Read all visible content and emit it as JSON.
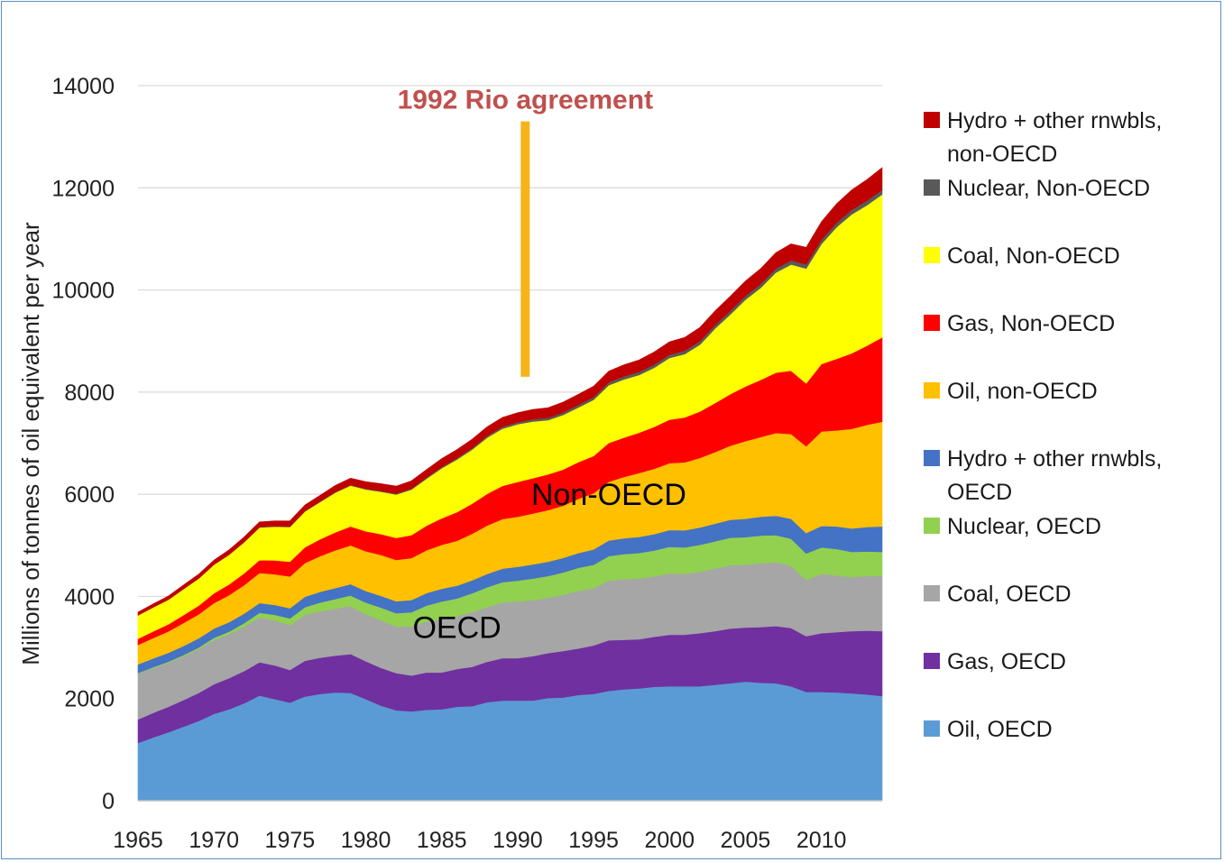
{
  "chart_data": {
    "type": "area",
    "stacked": true,
    "title": "",
    "ylabel": "Millions of tonnes of oil equivalent per year",
    "xlabel": "",
    "ylim": [
      0,
      14000
    ],
    "yticks": [
      0,
      2000,
      4000,
      6000,
      8000,
      10000,
      12000,
      14000
    ],
    "xticks": [
      1965,
      1970,
      1975,
      1980,
      1985,
      1990,
      1995,
      2000,
      2005,
      2010
    ],
    "grid": "horizontal",
    "legend_position": "right",
    "x": [
      1965,
      1966,
      1967,
      1968,
      1969,
      1970,
      1971,
      1972,
      1973,
      1974,
      1975,
      1976,
      1977,
      1978,
      1979,
      1980,
      1981,
      1982,
      1983,
      1984,
      1985,
      1986,
      1987,
      1988,
      1989,
      1990,
      1991,
      1992,
      1993,
      1994,
      1995,
      1996,
      1997,
      1998,
      1999,
      2000,
      2001,
      2002,
      2003,
      2004,
      2005,
      2006,
      2007,
      2008,
      2009,
      2010,
      2011,
      2012,
      2013,
      2014
    ],
    "series": [
      {
        "name": "Oil, OECD",
        "color": "#5b9bd5",
        "values": [
          1130,
          1240,
          1340,
          1450,
          1560,
          1700,
          1790,
          1910,
          2060,
          1990,
          1920,
          2040,
          2090,
          2120,
          2110,
          1990,
          1860,
          1770,
          1750,
          1780,
          1790,
          1840,
          1850,
          1930,
          1960,
          1960,
          1960,
          2010,
          2020,
          2070,
          2090,
          2150,
          2180,
          2200,
          2230,
          2240,
          2240,
          2240,
          2270,
          2300,
          2330,
          2310,
          2300,
          2240,
          2130,
          2130,
          2120,
          2100,
          2080,
          2050
        ]
      },
      {
        "name": "Gas, OECD",
        "color": "#7030a0",
        "values": [
          460,
          480,
          500,
          520,
          550,
          580,
          610,
          630,
          650,
          660,
          640,
          700,
          710,
          720,
          760,
          740,
          740,
          730,
          700,
          730,
          720,
          740,
          770,
          790,
          830,
          830,
          870,
          880,
          910,
          910,
          950,
          990,
          970,
          960,
          980,
          1010,
          1010,
          1040,
          1050,
          1070,
          1060,
          1090,
          1120,
          1140,
          1090,
          1150,
          1180,
          1220,
          1250,
          1270
        ]
      },
      {
        "name": "Coal, OECD",
        "color": "#a6a6a6",
        "values": [
          900,
          880,
          860,
          860,
          860,
          870,
          860,
          870,
          880,
          880,
          880,
          900,
          910,
          920,
          940,
          920,
          930,
          910,
          960,
          1000,
          1050,
          1030,
          1070,
          1070,
          1090,
          1110,
          1100,
          1080,
          1100,
          1130,
          1120,
          1170,
          1190,
          1190,
          1180,
          1200,
          1190,
          1200,
          1230,
          1240,
          1230,
          1250,
          1250,
          1220,
          1100,
          1160,
          1110,
          1060,
          1070,
          1080
        ]
      },
      {
        "name": "Nuclear, OECD",
        "color": "#92d050",
        "values": [
          10,
          15,
          20,
          25,
          30,
          40,
          50,
          70,
          90,
          110,
          130,
          150,
          170,
          190,
          210,
          230,
          250,
          260,
          280,
          310,
          340,
          350,
          370,
          390,
          400,
          410,
          420,
          430,
          440,
          450,
          460,
          480,
          490,
          500,
          510,
          520,
          520,
          530,
          530,
          540,
          540,
          540,
          530,
          530,
          520,
          520,
          520,
          490,
          480,
          470
        ]
      },
      {
        "name": "Hydro + other rnwbls, OECD",
        "color": "#4472c4",
        "values": [
          170,
          170,
          175,
          175,
          180,
          180,
          185,
          185,
          190,
          195,
          200,
          205,
          210,
          215,
          220,
          225,
          230,
          235,
          240,
          245,
          250,
          250,
          255,
          260,
          265,
          270,
          275,
          280,
          285,
          290,
          300,
          305,
          310,
          315,
          320,
          330,
          335,
          340,
          345,
          350,
          360,
          370,
          380,
          390,
          400,
          420,
          440,
          460,
          480,
          500
        ]
      },
      {
        "name": "Oil, non-OECD",
        "color": "#ffc000",
        "values": [
          380,
          400,
          420,
          450,
          470,
          500,
          530,
          560,
          590,
          600,
          620,
          660,
          700,
          740,
          760,
          780,
          800,
          810,
          820,
          840,
          860,
          880,
          910,
          950,
          970,
          980,
          1000,
          1010,
          1020,
          1060,
          1100,
          1150,
          1200,
          1250,
          1280,
          1310,
          1330,
          1360,
          1400,
          1450,
          1520,
          1560,
          1620,
          1660,
          1700,
          1850,
          1880,
          1950,
          2000,
          2050
        ]
      },
      {
        "name": "Gas, Non-OECD",
        "color": "#ff0000",
        "values": [
          120,
          130,
          140,
          155,
          170,
          190,
          210,
          230,
          250,
          270,
          290,
          310,
          330,
          350,
          370,
          390,
          410,
          430,
          450,
          480,
          520,
          560,
          590,
          620,
          650,
          680,
          690,
          700,
          710,
          720,
          730,
          760,
          770,
          790,
          820,
          850,
          880,
          910,
          960,
          1010,
          1070,
          1120,
          1180,
          1240,
          1230,
          1320,
          1400,
          1480,
          1550,
          1650
        ]
      },
      {
        "name": "Coal, Non-OECD",
        "color": "#ffff00",
        "values": [
          460,
          470,
          480,
          510,
          530,
          560,
          580,
          610,
          640,
          660,
          680,
          700,
          730,
          780,
          800,
          820,
          830,
          850,
          890,
          920,
          980,
          1030,
          1060,
          1100,
          1120,
          1130,
          1110,
          1060,
          1070,
          1070,
          1100,
          1130,
          1140,
          1130,
          1160,
          1210,
          1240,
          1310,
          1460,
          1560,
          1700,
          1800,
          1960,
          2080,
          2250,
          2350,
          2580,
          2720,
          2750,
          2800
        ]
      },
      {
        "name": "Nuclear, Non-OECD",
        "color": "#595959",
        "values": [
          2,
          2,
          3,
          3,
          4,
          5,
          6,
          7,
          8,
          9,
          10,
          11,
          12,
          13,
          15,
          16,
          18,
          20,
          22,
          25,
          28,
          30,
          33,
          36,
          40,
          42,
          45,
          48,
          50,
          52,
          55,
          58,
          60,
          62,
          64,
          66,
          68,
          70,
          72,
          74,
          76,
          78,
          80,
          82,
          84,
          86,
          88,
          90,
          92,
          95
        ]
      },
      {
        "name": "Hydro + other rnwbls, non-OECD",
        "label_lines": [
          "Hydro + other rnwbls,",
          "non-OECD"
        ],
        "color": "#c00000",
        "values": [
          60,
          65,
          70,
          75,
          80,
          85,
          90,
          95,
          100,
          105,
          110,
          115,
          120,
          125,
          130,
          135,
          140,
          145,
          150,
          155,
          160,
          165,
          170,
          175,
          180,
          185,
          190,
          195,
          200,
          205,
          210,
          218,
          226,
          234,
          242,
          250,
          258,
          266,
          274,
          282,
          290,
          300,
          310,
          320,
          330,
          350,
          370,
          390,
          410,
          430
        ]
      }
    ],
    "legend": [
      {
        "lines": [
          "Hydro + other rnwbls,",
          "non-OECD"
        ],
        "color": "#c00000"
      },
      {
        "lines": [
          "Nuclear, Non-OECD"
        ],
        "color": "#595959"
      },
      {
        "lines": [
          "Coal, Non-OECD"
        ],
        "color": "#ffff00"
      },
      {
        "lines": [
          "Gas, Non-OECD"
        ],
        "color": "#ff0000"
      },
      {
        "lines": [
          "Oil, non-OECD"
        ],
        "color": "#ffc000"
      },
      {
        "lines": [
          "Hydro + other rnwbls,",
          "OECD"
        ],
        "color": "#4472c4"
      },
      {
        "lines": [
          "Nuclear, OECD"
        ],
        "color": "#92d050"
      },
      {
        "lines": [
          "Coal, OECD"
        ],
        "color": "#a6a6a6"
      },
      {
        "lines": [
          "Gas, OECD"
        ],
        "color": "#7030a0"
      },
      {
        "lines": [
          "Oil, OECD"
        ],
        "color": "#5b9bd5"
      }
    ],
    "annotations": [
      {
        "text": "1992 Rio agreement",
        "color": "#c0504d",
        "x": 1990.5,
        "y": 13300
      },
      {
        "text": "Non-OECD",
        "x": 1996,
        "y": 6000
      },
      {
        "text": "OECD",
        "x": 1986,
        "y": 3400
      }
    ],
    "marker": {
      "x": 1990.5,
      "y_from": 8300,
      "y_to": 13300,
      "color": "#f5b41a"
    }
  }
}
